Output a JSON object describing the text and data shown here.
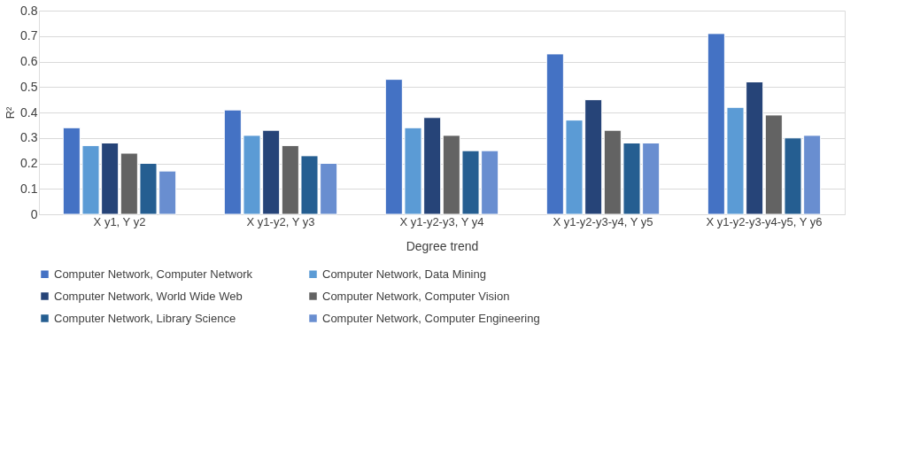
{
  "chart_data": {
    "type": "bar",
    "xlabel": "Degree trend",
    "ylabel": "R²",
    "categories": [
      "X y1, Y y2",
      "X y1-y2, Y y3",
      "X y1-y2-y3, Y y4",
      "X y1-y2-y3-y4, Y y5",
      "X y1-y2-y3-y4-y5, Y y6"
    ],
    "series": [
      {
        "name": "Computer Network, Computer Network",
        "color": "#4472c4",
        "values": [
          0.34,
          0.41,
          0.53,
          0.63,
          0.71
        ]
      },
      {
        "name": "Computer Network, Data Mining",
        "color": "#5b9bd5",
        "values": [
          0.27,
          0.31,
          0.34,
          0.37,
          0.42
        ]
      },
      {
        "name": "Computer Network, World Wide Web",
        "color": "#264478",
        "values": [
          0.28,
          0.33,
          0.38,
          0.45,
          0.52
        ]
      },
      {
        "name": "Computer Network, Computer Vision",
        "color": "#636363",
        "values": [
          0.24,
          0.27,
          0.31,
          0.33,
          0.39
        ]
      },
      {
        "name": "Computer Network, Library Science",
        "color": "#255e91",
        "values": [
          0.2,
          0.23,
          0.25,
          0.28,
          0.3
        ]
      },
      {
        "name": "Computer Network, Computer Engineering",
        "color": "#698ed0",
        "values": [
          0.17,
          0.2,
          0.25,
          0.28,
          0.31
        ]
      }
    ],
    "ylim": [
      0,
      0.8
    ],
    "yticks": [
      0,
      0.1,
      0.2,
      0.3,
      0.4,
      0.5,
      0.6,
      0.7,
      0.8
    ],
    "grid": "y",
    "legend": "bottom"
  }
}
